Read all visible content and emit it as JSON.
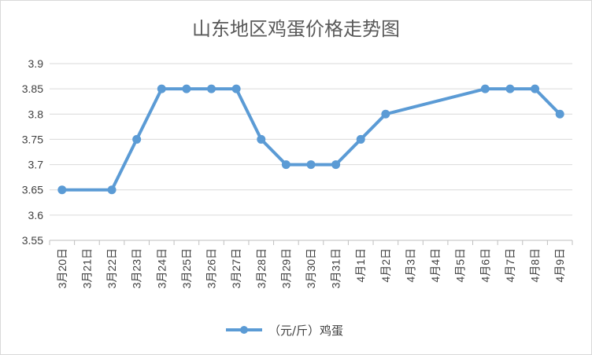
{
  "chart_data": {
    "type": "line",
    "title": "山东地区鸡蛋价格走势图",
    "categories": [
      "3月20日",
      "3月21日",
      "3月22日",
      "3月23日",
      "3月24日",
      "3月25日",
      "3月26日",
      "3月27日",
      "3月28日",
      "3月29日",
      "3月30日",
      "3月31日",
      "4月1日",
      "4月2日",
      "4月3日",
      "4月4日",
      "4月5日",
      "4月6日",
      "4月7日",
      "4月8日",
      "4月9日"
    ],
    "series": [
      {
        "name": "（元/斤）鸡蛋",
        "values": [
          3.65,
          null,
          3.65,
          3.75,
          3.85,
          3.85,
          3.85,
          3.85,
          3.75,
          3.7,
          3.7,
          3.7,
          3.75,
          3.8,
          null,
          null,
          null,
          3.85,
          3.85,
          3.85,
          3.8
        ],
        "color": "#5b9bd5"
      }
    ],
    "yticks": [
      "3.55",
      "3.6",
      "3.65",
      "3.7",
      "3.75",
      "3.8",
      "3.85",
      "3.9"
    ],
    "ylim": [
      3.55,
      3.9
    ],
    "grid": true,
    "legend_position": "bottom"
  }
}
